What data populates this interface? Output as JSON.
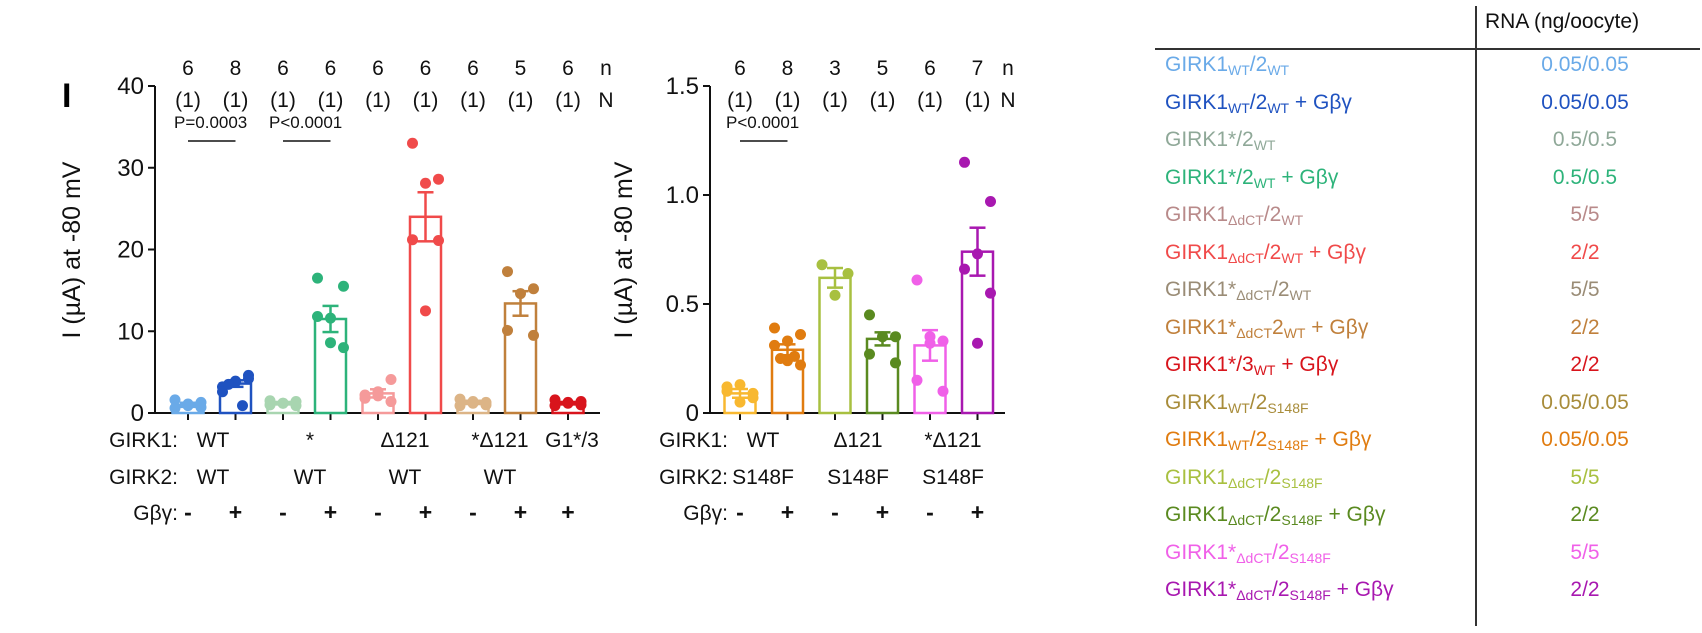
{
  "panel_label": "I",
  "chart_data": [
    {
      "type": "bar",
      "title": "",
      "ylabel": "I (µA) at -80 mV",
      "xlabel": "",
      "ylim": [
        0,
        40
      ],
      "yticks": [
        0,
        10,
        20,
        30,
        40
      ],
      "grid": false,
      "n_label": "n",
      "N_label": "N",
      "categories": [
        "WT/WT -",
        "WT/WT +",
        "*/WT -",
        "*/WT +",
        "Δ121/WT -",
        "Δ121/WT +",
        "*Δ121/WT -",
        "*Δ121/WT +",
        "G1*/3 +"
      ],
      "n": [
        6,
        8,
        6,
        6,
        6,
        6,
        6,
        5,
        6
      ],
      "N": [
        "(1)",
        "(1)",
        "(1)",
        "(1)",
        "(1)",
        "(1)",
        "(1)",
        "(1)",
        "(1)"
      ],
      "colors": [
        "#6aaae8",
        "#1f52c0",
        "#a8d5b0",
        "#2db37a",
        "#f59a9a",
        "#f04a4a",
        "#dcb486",
        "#c0803c",
        "#d8141c"
      ],
      "means": [
        1.0,
        3.6,
        1.2,
        11.5,
        2.4,
        24.0,
        1.3,
        13.4,
        1.2
      ],
      "sem": [
        0.25,
        0.4,
        0.15,
        1.6,
        0.5,
        3.0,
        0.2,
        1.5,
        0.15
      ],
      "points": [
        [
          0.6,
          1.3,
          0.9,
          1.6,
          0.7,
          1.1
        ],
        [
          3.2,
          4.6,
          3.9,
          2.6,
          4.2,
          3.8,
          3.5,
          0.9
        ],
        [
          1.0,
          1.4,
          1.2,
          1.5,
          0.9,
          1.2
        ],
        [
          16.5,
          15.5,
          11.6,
          11.8,
          8.0,
          8.6
        ],
        [
          1.8,
          4.1,
          2.6,
          2.2,
          1.4,
          2.1
        ],
        [
          33.0,
          28.6,
          28.1,
          21.2,
          21.1,
          12.5
        ],
        [
          0.9,
          1.3,
          1.2,
          1.7,
          1.0,
          1.4
        ],
        [
          17.3,
          15.2,
          14.6,
          10.1,
          9.5
        ],
        [
          0.9,
          1.4,
          1.3,
          1.6,
          1.0,
          1.2
        ]
      ],
      "annotations": [
        {
          "text": "P=0.0003",
          "between": [
            0,
            1
          ]
        },
        {
          "text": "P<0.0001",
          "between": [
            2,
            3
          ]
        }
      ],
      "girk1_label": "GIRK1:",
      "girk2_label": "GIRK2:",
      "gbg_label": "Gβγ:",
      "girk1_groups": [
        "WT",
        "*",
        "Δ121",
        "*Δ121",
        "G1*/3"
      ],
      "girk2_groups": [
        "WT",
        "WT",
        "WT",
        "WT",
        ""
      ],
      "gbg": [
        "-",
        "+",
        "-",
        "+",
        "-",
        "+",
        "-",
        "+",
        "+"
      ]
    },
    {
      "type": "bar",
      "title": "",
      "ylabel": "I (µA) at -80 mV",
      "xlabel": "",
      "ylim": [
        0,
        1.5
      ],
      "yticks": [
        0,
        0.5,
        1.0,
        1.5
      ],
      "ytick_labels": [
        "0",
        "0.5",
        "1.0",
        "1.5"
      ],
      "grid": false,
      "n_label": "n",
      "N_label": "N",
      "categories": [
        "WT/S148F -",
        "WT/S148F +",
        "Δ121/S148F -",
        "Δ121/S148F +",
        "*Δ121/S148F -",
        "*Δ121/S148F +"
      ],
      "n": [
        6,
        8,
        3,
        5,
        6,
        7
      ],
      "N": [
        "(1)",
        "(1)",
        "(1)",
        "(1)",
        "(1)",
        "(1)"
      ],
      "colors": [
        "#f8b830",
        "#e07c10",
        "#a8c040",
        "#5a8a20",
        "#f060e8",
        "#a818b0"
      ],
      "means": [
        0.09,
        0.29,
        0.62,
        0.34,
        0.31,
        0.74
      ],
      "sem": [
        0.02,
        0.025,
        0.045,
        0.03,
        0.07,
        0.11
      ],
      "points": [
        [
          0.12,
          0.07,
          0.05,
          0.1,
          0.09,
          0.13
        ],
        [
          0.39,
          0.36,
          0.33,
          0.31,
          0.22,
          0.24,
          0.25,
          0.26
        ],
        [
          0.68,
          0.64,
          0.54
        ],
        [
          0.45,
          0.35,
          0.35,
          0.27,
          0.23
        ],
        [
          0.61,
          0.33,
          0.35,
          0.15,
          0.1,
          0.32
        ],
        [
          1.15,
          0.97,
          0.73,
          0.66,
          0.55,
          0.32
        ]
      ],
      "annotations": [
        {
          "text": "P<0.0001",
          "between": [
            0,
            1
          ]
        }
      ],
      "girk1_label": "GIRK1:",
      "girk2_label": "GIRK2:",
      "gbg_label": "Gβγ:",
      "girk1_groups": [
        "WT",
        "Δ121",
        "*Δ121"
      ],
      "girk2_groups": [
        "S148F",
        "S148F",
        "S148F"
      ],
      "gbg": [
        "-",
        "+",
        "-",
        "+",
        "-",
        "+"
      ]
    }
  ],
  "legend": {
    "header": "RNA (ng/oocyte)",
    "rows": [
      {
        "parts": [
          [
            "GIRK1",
            ""
          ],
          [
            "WT",
            "sub"
          ],
          [
            "/2",
            ""
          ],
          [
            "WT",
            "sub"
          ]
        ],
        "value": "0.05/0.05",
        "color": "#6aaae8"
      },
      {
        "parts": [
          [
            "GIRK1",
            ""
          ],
          [
            "WT",
            "sub"
          ],
          [
            "/2",
            ""
          ],
          [
            "WT",
            "sub"
          ],
          [
            " + Gβγ",
            ""
          ]
        ],
        "value": "0.05/0.05",
        "color": "#1f52c0"
      },
      {
        "parts": [
          [
            "GIRK1*/2",
            ""
          ],
          [
            "WT",
            "sub"
          ]
        ],
        "value": "0.5/0.5",
        "color": "#8fa898"
      },
      {
        "parts": [
          [
            "GIRK1*/2",
            ""
          ],
          [
            "WT",
            "sub"
          ],
          [
            " + Gβγ",
            ""
          ]
        ],
        "value": "0.5/0.5",
        "color": "#2db37a"
      },
      {
        "parts": [
          [
            "GIRK1",
            ""
          ],
          [
            "ΔdCT",
            "sub"
          ],
          [
            "/2",
            ""
          ],
          [
            "WT",
            "sub"
          ]
        ],
        "value": "5/5",
        "color": "#b88a8a"
      },
      {
        "parts": [
          [
            "GIRK1",
            ""
          ],
          [
            "ΔdCT",
            "sub"
          ],
          [
            "/2",
            ""
          ],
          [
            "WT",
            "sub"
          ],
          [
            " + Gβγ",
            ""
          ]
        ],
        "value": "2/2",
        "color": "#f04a4a"
      },
      {
        "parts": [
          [
            "GIRK1*",
            ""
          ],
          [
            "ΔdCT",
            "sub"
          ],
          [
            "/2",
            ""
          ],
          [
            "WT",
            "sub"
          ]
        ],
        "value": "5/5",
        "color": "#9a8c76"
      },
      {
        "parts": [
          [
            "GIRK1*",
            ""
          ],
          [
            "ΔdCT",
            "sub"
          ],
          [
            "2",
            ""
          ],
          [
            "WT",
            "sub"
          ],
          [
            " + Gβγ",
            ""
          ]
        ],
        "value": "2/2",
        "color": "#c0803c"
      },
      {
        "parts": [
          [
            "GIRK1*/3",
            ""
          ],
          [
            "WT",
            "sub"
          ],
          [
            " + Gβγ",
            ""
          ]
        ],
        "value": "2/2",
        "color": "#d8141c"
      },
      {
        "parts": [
          [
            "GIRK1",
            ""
          ],
          [
            "WT",
            "sub"
          ],
          [
            "/2",
            ""
          ],
          [
            "S148F",
            "sub"
          ]
        ],
        "value": "0.05/0.05",
        "color": "#a88c3a"
      },
      {
        "parts": [
          [
            "GIRK1",
            ""
          ],
          [
            "WT",
            "sub"
          ],
          [
            "/2",
            ""
          ],
          [
            "S148F",
            "sub"
          ],
          [
            " + Gβγ",
            ""
          ]
        ],
        "value": "0.05/0.05",
        "color": "#e07c10"
      },
      {
        "parts": [
          [
            "GIRK1",
            ""
          ],
          [
            "ΔdCT",
            "sub"
          ],
          [
            "/2",
            ""
          ],
          [
            "S148F",
            "sub"
          ]
        ],
        "value": "5/5",
        "color": "#a8c040"
      },
      {
        "parts": [
          [
            "GIRK1",
            ""
          ],
          [
            "ΔdCT",
            "sub"
          ],
          [
            "/2",
            ""
          ],
          [
            "S148F",
            "sub"
          ],
          [
            " + Gβγ",
            ""
          ]
        ],
        "value": "2/2",
        "color": "#5a8a20"
      },
      {
        "parts": [
          [
            "GIRK1*",
            ""
          ],
          [
            "ΔdCT",
            "sub"
          ],
          [
            "/2",
            ""
          ],
          [
            "S148F",
            "sub"
          ]
        ],
        "value": "5/5",
        "color": "#f060e8"
      },
      {
        "parts": [
          [
            "GIRK1*",
            ""
          ],
          [
            "ΔdCT",
            "sub"
          ],
          [
            "/2",
            ""
          ],
          [
            "S148F",
            "sub"
          ],
          [
            " + Gβγ",
            ""
          ]
        ],
        "value": "2/2",
        "color": "#a818b0"
      }
    ]
  }
}
